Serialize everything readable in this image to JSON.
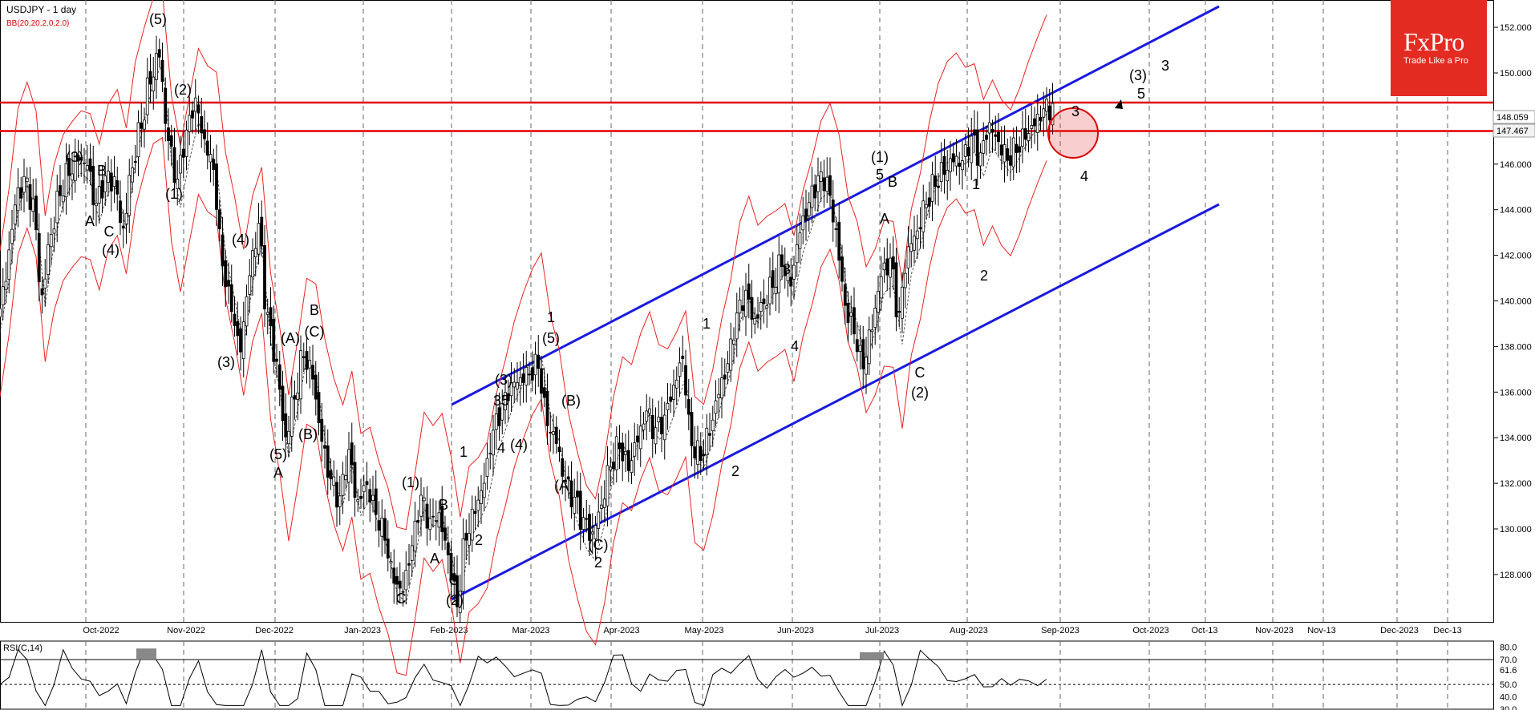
{
  "header": {
    "symbol": "USDJPY - 1 day",
    "indicator": "BB(20,20,2.0,2.0)"
  },
  "logo": {
    "brand": "FxPro",
    "tagline": "Trade Like a Pro"
  },
  "rsi": {
    "label": "RSI(C,14)",
    "levels": [
      "80.0",
      "70.0",
      "61.6",
      "50.0",
      "40.0",
      "30.0"
    ]
  },
  "chart_data": {
    "type": "candlestick",
    "title": "USDJPY - 1 day",
    "y_ticks": [
      "152.000",
      "150.000",
      "148.000",
      "146.000",
      "144.000",
      "142.000",
      "140.000",
      "138.000",
      "136.000",
      "134.000",
      "132.000",
      "130.000",
      "128.000"
    ],
    "ylim": [
      126.0,
      153.0
    ],
    "x_ticks": [
      "Oct-2022",
      "Nov-2022",
      "Dec-2022",
      "Jan-2023",
      "Feb-2023",
      "Mar-2023",
      "Apr-2023",
      "May-2023",
      "Jun-2023",
      "Jul-2023",
      "Aug-2023",
      "Sep-2023",
      "Oct-2023",
      "Oct-13",
      "Nov-2023",
      "Nov-13",
      "Dec-2023",
      "Dec-13"
    ],
    "price_labels": [
      "148.059",
      "147.467"
    ],
    "resistance_levels": [
      148.7,
      147.45
    ],
    "close_path": [
      [
        139,
        0
      ],
      [
        141,
        3
      ],
      [
        144,
        6
      ],
      [
        145,
        9
      ],
      [
        144,
        12
      ],
      [
        140,
        15
      ],
      [
        143,
        18
      ],
      [
        145,
        21
      ],
      [
        146,
        24
      ],
      [
        146.5,
        27
      ],
      [
        146,
        30
      ],
      [
        144,
        33
      ],
      [
        145,
        36
      ],
      [
        145,
        39
      ],
      [
        143,
        42
      ],
      [
        146,
        45
      ],
      [
        148,
        48
      ],
      [
        150,
        51
      ],
      [
        151,
        54
      ],
      [
        147,
        57
      ],
      [
        145,
        60
      ],
      [
        147,
        63
      ],
      [
        148.5,
        66
      ],
      [
        147,
        69
      ],
      [
        146,
        72
      ],
      [
        142,
        75
      ],
      [
        140,
        78
      ],
      [
        138,
        81
      ],
      [
        141,
        84
      ],
      [
        143,
        87
      ],
      [
        139,
        90
      ],
      [
        137,
        93
      ],
      [
        134,
        96
      ],
      [
        136,
        99
      ],
      [
        138,
        102
      ],
      [
        137,
        105
      ],
      [
        134,
        108
      ],
      [
        132,
        111
      ],
      [
        131,
        114
      ],
      [
        133,
        117
      ],
      [
        131,
        120
      ],
      [
        132,
        123
      ],
      [
        131,
        126
      ],
      [
        130,
        129
      ],
      [
        128,
        132
      ],
      [
        127.3,
        135
      ],
      [
        129,
        138
      ],
      [
        131,
        141
      ],
      [
        130,
        144
      ],
      [
        130.5,
        147
      ],
      [
        129,
        150
      ],
      [
        127,
        153
      ],
      [
        130,
        156
      ],
      [
        131,
        159
      ],
      [
        132,
        162
      ],
      [
        134,
        165
      ],
      [
        135,
        168
      ],
      [
        136,
        171
      ],
      [
        136.5,
        174
      ],
      [
        137,
        177
      ],
      [
        137.5,
        180
      ],
      [
        135,
        183
      ],
      [
        134,
        186
      ],
      [
        132,
        189
      ],
      [
        131,
        192
      ],
      [
        130,
        195
      ],
      [
        129.5,
        198
      ],
      [
        131,
        201
      ],
      [
        133,
        204
      ],
      [
        134,
        207
      ],
      [
        133,
        210
      ],
      [
        134,
        213
      ],
      [
        135,
        216
      ],
      [
        134,
        219
      ],
      [
        134.5,
        222
      ],
      [
        136,
        225
      ],
      [
        137.5,
        228
      ],
      [
        134,
        231
      ],
      [
        133.5,
        234
      ],
      [
        134.5,
        237
      ],
      [
        136,
        240
      ],
      [
        137,
        243
      ],
      [
        139,
        246
      ],
      [
        140,
        249
      ],
      [
        139,
        252
      ],
      [
        140,
        255
      ],
      [
        141,
        258
      ],
      [
        142,
        261
      ],
      [
        141,
        264
      ],
      [
        143,
        267
      ],
      [
        144,
        270
      ],
      [
        145,
        273
      ],
      [
        145,
        276
      ],
      [
        143,
        279
      ],
      [
        140,
        282
      ],
      [
        139,
        285
      ],
      [
        137.5,
        288
      ],
      [
        139,
        291
      ],
      [
        141,
        294
      ],
      [
        141.5,
        297
      ],
      [
        139,
        300
      ],
      [
        142,
        303
      ],
      [
        143,
        306
      ],
      [
        144.5,
        309
      ],
      [
        145.5,
        312
      ],
      [
        146,
        315
      ],
      [
        146.3,
        318
      ],
      [
        146,
        321
      ],
      [
        146.8,
        324
      ],
      [
        146,
        327
      ],
      [
        147.5,
        330
      ],
      [
        147,
        333
      ],
      [
        146.5,
        336
      ],
      [
        147,
        339
      ],
      [
        147.5,
        342
      ],
      [
        147.8,
        345
      ],
      [
        148.2,
        348
      ]
    ],
    "wave_labels": [
      {
        "t": "(5)",
        "x": 197,
        "y": 30
      },
      {
        "t": "(2)",
        "x": 228,
        "y": 118
      },
      {
        "t": "(3)",
        "x": 93,
        "y": 202
      },
      {
        "t": "B",
        "x": 127,
        "y": 219
      },
      {
        "t": "A",
        "x": 112,
        "y": 282
      },
      {
        "t": "C",
        "x": 136,
        "y": 295
      },
      {
        "t": "(4)",
        "x": 138,
        "y": 318
      },
      {
        "t": "(1)",
        "x": 217,
        "y": 248
      },
      {
        "t": "(4)",
        "x": 300,
        "y": 305
      },
      {
        "t": "(3)",
        "x": 282,
        "y": 458
      },
      {
        "t": "(A)",
        "x": 362,
        "y": 428
      },
      {
        "t": "B",
        "x": 392,
        "y": 393
      },
      {
        "t": "(C)",
        "x": 392,
        "y": 420
      },
      {
        "t": "(B)",
        "x": 384,
        "y": 548
      },
      {
        "t": "(5)",
        "x": 347,
        "y": 573
      },
      {
        "t": "A",
        "x": 347,
        "y": 596
      },
      {
        "t": "(1)",
        "x": 512,
        "y": 608
      },
      {
        "t": "B",
        "x": 553,
        "y": 636
      },
      {
        "t": "A",
        "x": 542,
        "y": 703
      },
      {
        "t": "C",
        "x": 566,
        "y": 730
      },
      {
        "t": "(2)",
        "x": 567,
        "y": 755
      },
      {
        "t": "C",
        "x": 500,
        "y": 753
      },
      {
        "t": "1",
        "x": 578,
        "y": 570
      },
      {
        "t": "2",
        "x": 597,
        "y": 680
      },
      {
        "t": "(3)",
        "x": 628,
        "y": 480
      },
      {
        "t": "35",
        "x": 625,
        "y": 506
      },
      {
        "t": "4",
        "x": 625,
        "y": 565
      },
      {
        "t": "(4)",
        "x": 647,
        "y": 561
      },
      {
        "t": "1",
        "x": 687,
        "y": 402
      },
      {
        "t": "(5)",
        "x": 687,
        "y": 428
      },
      {
        "t": "(B)",
        "x": 712,
        "y": 506
      },
      {
        "t": "(A)",
        "x": 703,
        "y": 612
      },
      {
        "t": "(C)",
        "x": 746,
        "y": 686
      },
      {
        "t": "2",
        "x": 746,
        "y": 708
      },
      {
        "t": "1",
        "x": 881,
        "y": 410
      },
      {
        "t": "2",
        "x": 917,
        "y": 594
      },
      {
        "t": "3",
        "x": 981,
        "y": 342
      },
      {
        "t": "4",
        "x": 991,
        "y": 438
      },
      {
        "t": "(1)",
        "x": 1097,
        "y": 202
      },
      {
        "t": "5",
        "x": 1097,
        "y": 224
      },
      {
        "t": "B",
        "x": 1113,
        "y": 233
      },
      {
        "t": "A",
        "x": 1103,
        "y": 279
      },
      {
        "t": "C",
        "x": 1147,
        "y": 471
      },
      {
        "t": "(2)",
        "x": 1147,
        "y": 496
      },
      {
        "t": "1",
        "x": 1217,
        "y": 236
      },
      {
        "t": "2",
        "x": 1227,
        "y": 350
      },
      {
        "t": "3",
        "x": 1341,
        "y": 145
      },
      {
        "t": "4",
        "x": 1352,
        "y": 226
      },
      {
        "t": "(3)",
        "x": 1419,
        "y": 100
      },
      {
        "t": "5",
        "x": 1423,
        "y": 123
      },
      {
        "t": "3",
        "x": 1453,
        "y": 88
      }
    ]
  }
}
